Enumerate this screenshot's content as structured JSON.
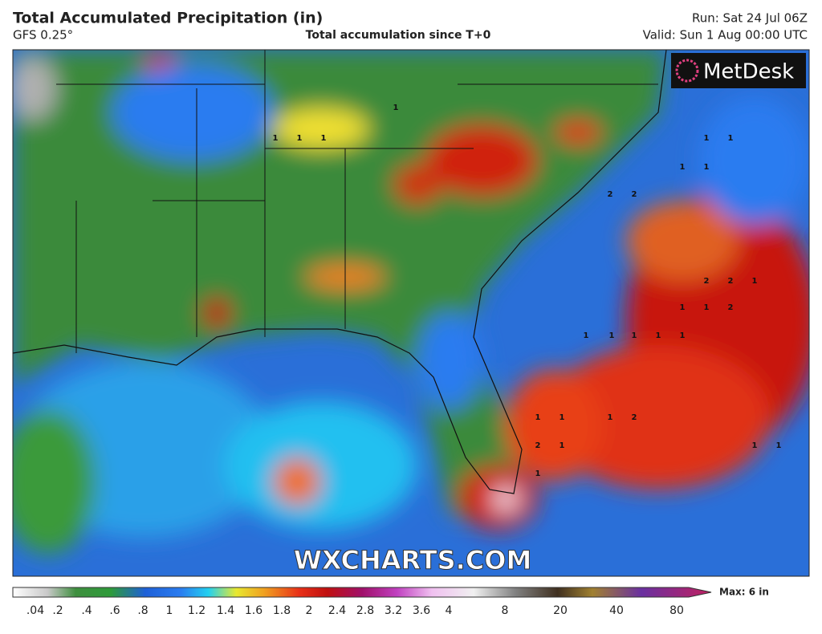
{
  "header": {
    "title": "Total Accumulated Precipitation (in)",
    "model": "GFS 0.25°",
    "subtitle": "Total accumulation since T+0",
    "run": "Run: Sat 24 Jul 06Z",
    "valid": "Valid: Sun 1 Aug 00:00 UTC"
  },
  "logo": "MetDesk",
  "watermark": "WXCHARTS.COM",
  "map_labels": [
    "1",
    "1",
    "1",
    "1",
    "1",
    "1",
    "1",
    "1",
    "2",
    "2",
    "2",
    "2",
    "1",
    "1",
    "1",
    "2",
    "1",
    "1",
    "1",
    "1",
    "1",
    "2",
    "1",
    "1",
    "1",
    "1",
    "1",
    "1",
    "2",
    "1"
  ],
  "legend": {
    "ticks": [
      ".04",
      ".2",
      ".4",
      ".6",
      ".8",
      "1",
      "1.2",
      "1.4",
      "1.6",
      "1.8",
      "2",
      "2.4",
      "2.8",
      "3.2",
      "3.6",
      "4",
      "8",
      "20",
      "40",
      "80"
    ],
    "max_label": "Max: 6 in"
  }
}
